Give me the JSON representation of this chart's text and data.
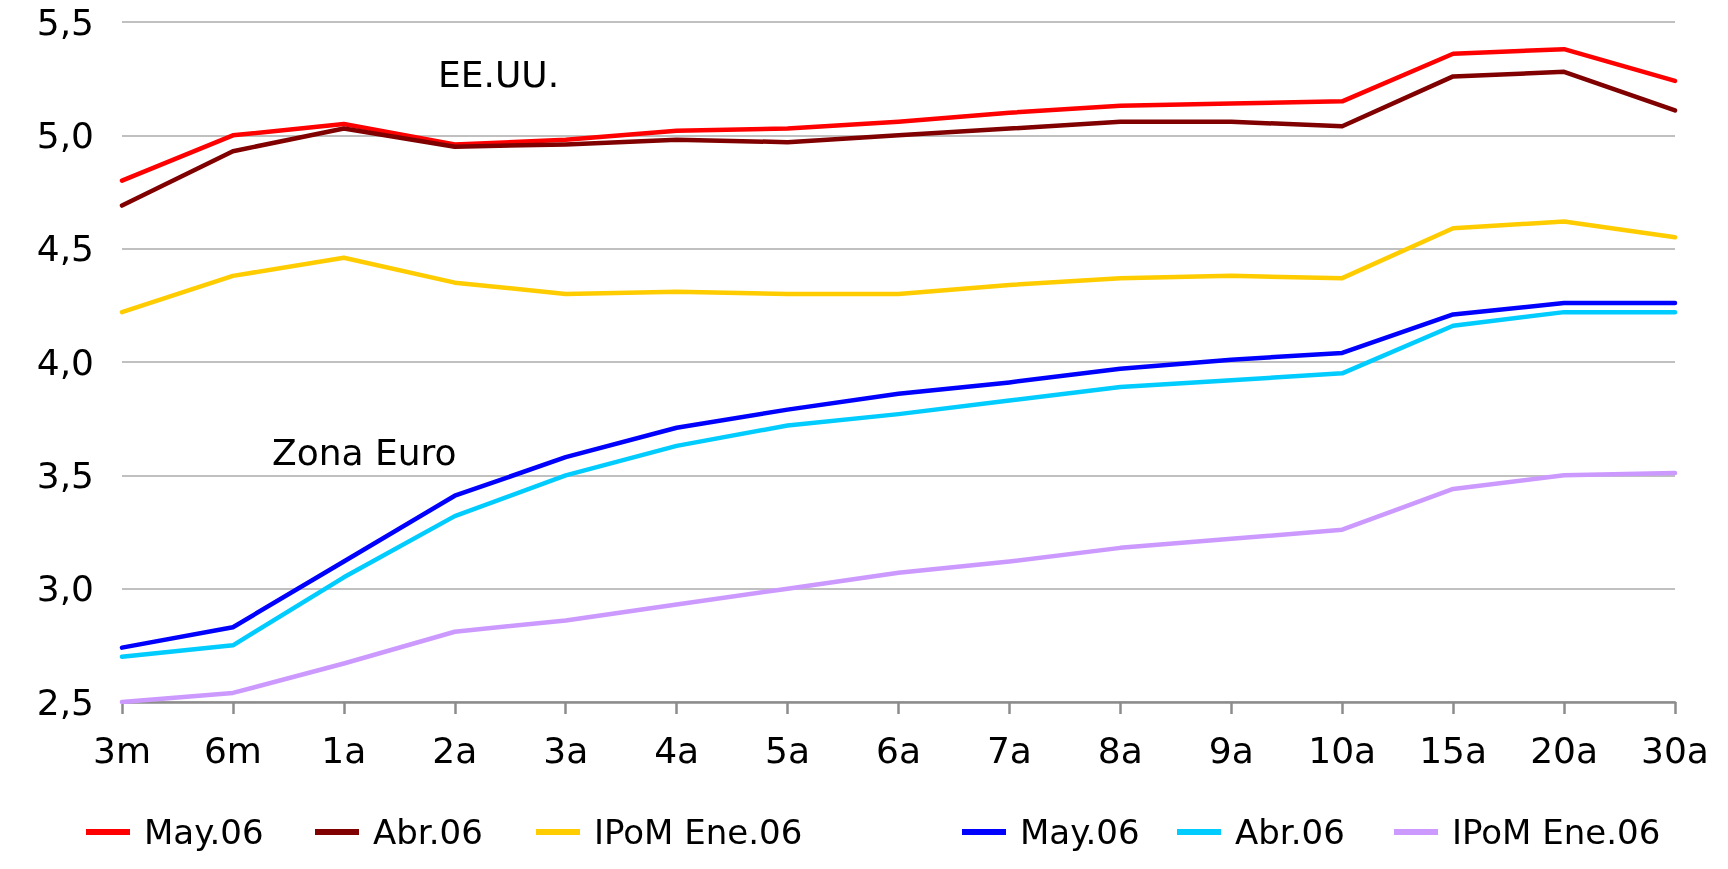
{
  "chart_data": {
    "type": "line",
    "categories": [
      "3m",
      "6m",
      "1a",
      "2a",
      "3a",
      "4a",
      "5a",
      "6a",
      "7a",
      "8a",
      "9a",
      "10a",
      "15a",
      "20a",
      "30a"
    ],
    "series": [
      {
        "name": "May.06",
        "color": "#ff0000",
        "values": [
          4.8,
          5.0,
          5.05,
          4.96,
          4.98,
          5.02,
          5.03,
          5.06,
          5.1,
          5.13,
          5.14,
          5.15,
          5.36,
          5.38,
          5.24
        ]
      },
      {
        "name": "Abr.06",
        "color": "#800000",
        "values": [
          4.69,
          4.93,
          5.03,
          4.95,
          4.96,
          4.98,
          4.97,
          5.0,
          5.03,
          5.06,
          5.06,
          5.04,
          5.26,
          5.28,
          5.11
        ]
      },
      {
        "name": "IPoM Ene.06",
        "color": "#ffcc00",
        "values": [
          4.22,
          4.38,
          4.46,
          4.35,
          4.3,
          4.31,
          4.3,
          4.3,
          4.34,
          4.37,
          4.38,
          4.37,
          4.59,
          4.62,
          4.55
        ]
      },
      {
        "name": "May.06",
        "color": "#0000ff",
        "values": [
          2.74,
          2.83,
          3.12,
          3.41,
          3.58,
          3.71,
          3.79,
          3.86,
          3.91,
          3.97,
          4.01,
          4.04,
          4.21,
          4.26,
          4.26
        ]
      },
      {
        "name": "Abr.06",
        "color": "#00ccff",
        "values": [
          2.7,
          2.75,
          3.05,
          3.32,
          3.5,
          3.63,
          3.72,
          3.77,
          3.83,
          3.89,
          3.92,
          3.95,
          4.16,
          4.22,
          4.22
        ]
      },
      {
        "name": "IPoM Ene.06",
        "color": "#cc99ff",
        "values": [
          2.5,
          2.54,
          2.67,
          2.81,
          2.86,
          2.93,
          3.0,
          3.07,
          3.12,
          3.18,
          3.22,
          3.26,
          3.44,
          3.5,
          3.51
        ]
      }
    ],
    "ylim": [
      2.5,
      5.5
    ],
    "yticks": [
      {
        "value": 2.5,
        "label": "2,5"
      },
      {
        "value": 3.0,
        "label": "3,0"
      },
      {
        "value": 3.5,
        "label": "3,5"
      },
      {
        "value": 4.0,
        "label": "4,0"
      },
      {
        "value": 4.5,
        "label": "4,5"
      },
      {
        "value": 5.0,
        "label": "5,0"
      },
      {
        "value": 5.5,
        "label": "5,5"
      }
    ],
    "annotations": [
      "EE.UU.",
      "Zona Euro"
    ],
    "grid": "y",
    "legend": "bottom",
    "marker": "none",
    "line_style": "solid"
  }
}
